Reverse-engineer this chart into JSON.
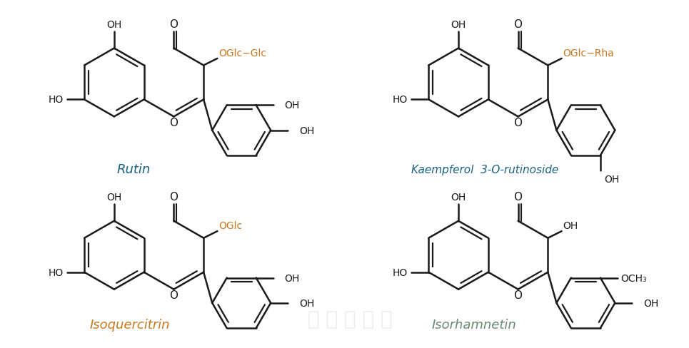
{
  "background": "#ffffff",
  "line_color": "#1a1a1a",
  "orange_color": "#c87820",
  "name_color_blue": "#1a6080",
  "name_color_orange": "#c87820",
  "name_color_sage": "#6a8a70",
  "compounds": [
    {
      "name": "Rutin",
      "color": "#1a6080"
    },
    {
      "name": "Kaempferol  3-O-rutinoside",
      "color": "#1a6080"
    },
    {
      "name": "Isoquercitrin",
      "color": "#c87820"
    },
    {
      "name": "Isorhamnetin",
      "color": "#6a8a70"
    }
  ]
}
